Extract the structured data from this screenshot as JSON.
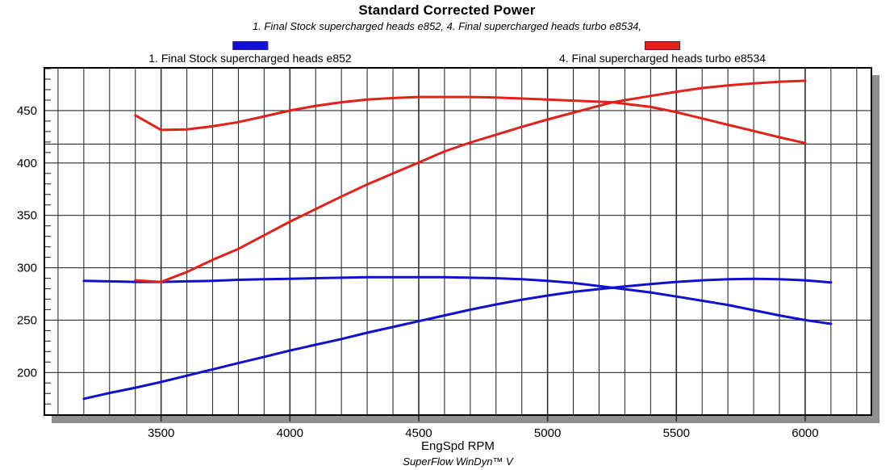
{
  "header": {
    "title": "Standard Corrected Power",
    "subtitle": "1. Final Stock supercharged heads e852, 4. Final supercharged heads turbo e8534,"
  },
  "footer": {
    "xlabel": "EngSpd RPM",
    "branding": "SuperFlow WinDyn™ V"
  },
  "legend": [
    {
      "label": "1. Final Stock supercharged heads e852",
      "color": "#1010CE"
    },
    {
      "label": "4. Final supercharged heads turbo e8534",
      "color": "#E3201A"
    }
  ],
  "colors": {
    "grid": "#2e2e2e",
    "border": "#000000",
    "shadow": "#909090",
    "run1": "#1010CE",
    "run4": "#E3201A"
  },
  "chart_data": {
    "type": "line",
    "title": "Standard Corrected Power",
    "xlabel": "EngSpd RPM",
    "x_axis": {
      "min": 3047,
      "max": 6257,
      "major_ticks": [
        3500,
        4000,
        4500,
        5000,
        5500,
        6000
      ],
      "minor_step": 100,
      "minor_start": 3100,
      "minor_end": 6200
    },
    "y_axis": {
      "min": 159.4,
      "max": 490.8,
      "major_ticks": [
        450,
        400,
        350,
        300,
        250,
        200
      ],
      "minor_step": 10,
      "minor_start": 170,
      "minor_end": 490,
      "extra_gridline": 418
    },
    "series": [
      {
        "id": "run1-power",
        "run": "1. Final Stock supercharged heads e852",
        "channel": "power",
        "color": "#1010CE",
        "points": [
          [
            3200,
            175
          ],
          [
            3300,
            180.5
          ],
          [
            3400,
            185.5
          ],
          [
            3500,
            191
          ],
          [
            3600,
            197
          ],
          [
            3700,
            203
          ],
          [
            3800,
            209
          ],
          [
            3900,
            215
          ],
          [
            4000,
            221
          ],
          [
            4100,
            226.5
          ],
          [
            4200,
            232
          ],
          [
            4300,
            238
          ],
          [
            4400,
            243.5
          ],
          [
            4500,
            249
          ],
          [
            4600,
            254.5
          ],
          [
            4700,
            260
          ],
          [
            4800,
            265
          ],
          [
            4900,
            269.5
          ],
          [
            5000,
            273.5
          ],
          [
            5100,
            277
          ],
          [
            5252,
            281
          ],
          [
            5400,
            284.5
          ],
          [
            5500,
            286.5
          ],
          [
            5600,
            288
          ],
          [
            5700,
            289
          ],
          [
            5800,
            289.5
          ],
          [
            5900,
            289
          ],
          [
            6000,
            288
          ],
          [
            6100,
            286
          ]
        ]
      },
      {
        "id": "run1-torque",
        "run": "1. Final Stock supercharged heads e852",
        "channel": "torque",
        "color": "#1010CE",
        "points": [
          [
            3200,
            287.5
          ],
          [
            3300,
            287
          ],
          [
            3400,
            286.5
          ],
          [
            3500,
            286.5
          ],
          [
            3600,
            287
          ],
          [
            3700,
            287.5
          ],
          [
            3800,
            288.5
          ],
          [
            3900,
            289
          ],
          [
            4000,
            289.5
          ],
          [
            4100,
            290
          ],
          [
            4200,
            290.5
          ],
          [
            4300,
            291
          ],
          [
            4400,
            291
          ],
          [
            4500,
            291
          ],
          [
            4600,
            291
          ],
          [
            4700,
            290.5
          ],
          [
            4800,
            290
          ],
          [
            4900,
            289
          ],
          [
            5000,
            287.5
          ],
          [
            5100,
            285.5
          ],
          [
            5252,
            281
          ],
          [
            5400,
            276.5
          ],
          [
            5500,
            272.5
          ],
          [
            5600,
            268.5
          ],
          [
            5700,
            264.5
          ],
          [
            5800,
            259.5
          ],
          [
            5900,
            254.5
          ],
          [
            6000,
            250
          ],
          [
            6100,
            246.5
          ]
        ]
      },
      {
        "id": "run4-power",
        "run": "4. Final supercharged heads turbo e8534",
        "channel": "power",
        "color": "#E3201A",
        "points": [
          [
            3400,
            288
          ],
          [
            3500,
            286.5
          ],
          [
            3600,
            296
          ],
          [
            3700,
            307.5
          ],
          [
            3800,
            318
          ],
          [
            3900,
            331
          ],
          [
            4000,
            344
          ],
          [
            4100,
            356
          ],
          [
            4200,
            368
          ],
          [
            4300,
            379.5
          ],
          [
            4400,
            390
          ],
          [
            4500,
            400.5
          ],
          [
            4600,
            411
          ],
          [
            4700,
            419.5
          ],
          [
            4800,
            427
          ],
          [
            4900,
            434.5
          ],
          [
            5000,
            441.5
          ],
          [
            5100,
            448
          ],
          [
            5252,
            458
          ],
          [
            5400,
            464
          ],
          [
            5500,
            468
          ],
          [
            5600,
            471.5
          ],
          [
            5700,
            474
          ],
          [
            5800,
            476
          ],
          [
            5900,
            477.5
          ],
          [
            6000,
            478.5
          ]
        ]
      },
      {
        "id": "run4-torque",
        "run": "4. Final supercharged heads turbo e8534",
        "channel": "torque",
        "color": "#E3201A",
        "points": [
          [
            3400,
            445.5
          ],
          [
            3500,
            431.5
          ],
          [
            3600,
            432
          ],
          [
            3700,
            435
          ],
          [
            3800,
            439
          ],
          [
            3900,
            444.5
          ],
          [
            4000,
            450
          ],
          [
            4100,
            454.5
          ],
          [
            4200,
            458
          ],
          [
            4300,
            460.5
          ],
          [
            4400,
            462
          ],
          [
            4500,
            463
          ],
          [
            4600,
            463
          ],
          [
            4700,
            463
          ],
          [
            4800,
            462.5
          ],
          [
            4900,
            461.5
          ],
          [
            5000,
            460.5
          ],
          [
            5100,
            459.5
          ],
          [
            5252,
            458
          ],
          [
            5400,
            453.5
          ],
          [
            5500,
            448.5
          ],
          [
            5600,
            442.5
          ],
          [
            5700,
            436.5
          ],
          [
            5800,
            430.5
          ],
          [
            5900,
            424.5
          ],
          [
            6000,
            419
          ]
        ]
      }
    ]
  }
}
